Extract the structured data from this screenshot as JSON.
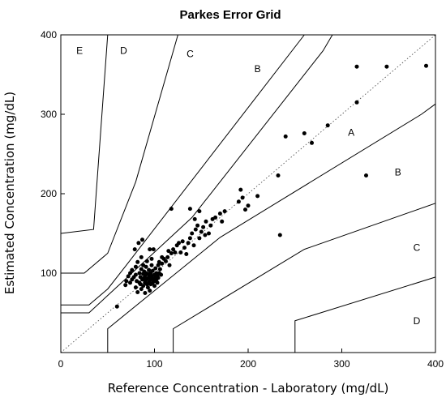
{
  "chart_data": {
    "type": "scatter",
    "title": "Parkes Error Grid",
    "xlabel": "Reference Concentration - Laboratory (mg/dL)",
    "ylabel": "Estimated Concentration (mg/dL)",
    "xlim": [
      0,
      400
    ],
    "ylim": [
      0,
      400
    ],
    "xticks": [
      "0",
      "100",
      "200",
      "300",
      "400"
    ],
    "yticks": [
      "100",
      "200",
      "300",
      "400"
    ],
    "grid": false,
    "identity_line": {
      "from": [
        0,
        0
      ],
      "to": [
        400,
        400
      ],
      "style": "dotted"
    },
    "zone_boundaries": [
      {
        "name": "A/B upper",
        "points": [
          [
            0,
            50
          ],
          [
            30,
            50
          ],
          [
            140,
            170
          ],
          [
            280,
            380
          ],
          [
            290,
            400
          ]
        ]
      },
      {
        "name": "A/B lower",
        "points": [
          [
            50,
            0
          ],
          [
            50,
            30
          ],
          [
            170,
            145
          ],
          [
            385,
            300
          ],
          [
            400,
            313
          ]
        ]
      },
      {
        "name": "B/C upper",
        "points": [
          [
            0,
            60
          ],
          [
            30,
            60
          ],
          [
            50,
            80
          ],
          [
            70,
            110
          ],
          [
            260,
            400
          ]
        ]
      },
      {
        "name": "B/C lower",
        "points": [
          [
            120,
            0
          ],
          [
            120,
            30
          ],
          [
            260,
            130
          ],
          [
            400,
            188
          ]
        ]
      },
      {
        "name": "C/D upper",
        "points": [
          [
            0,
            100
          ],
          [
            25,
            100
          ],
          [
            50,
            125
          ],
          [
            80,
            215
          ],
          [
            125,
            400
          ]
        ]
      },
      {
        "name": "C/D lower",
        "points": [
          [
            250,
            0
          ],
          [
            250,
            40
          ],
          [
            400,
            95
          ]
        ]
      },
      {
        "name": "D/E upper",
        "points": [
          [
            0,
            150
          ],
          [
            35,
            155
          ],
          [
            50,
            400
          ]
        ]
      }
    ],
    "zone_labels": [
      {
        "text": "E",
        "x": 20,
        "y": 380
      },
      {
        "text": "D",
        "x": 67,
        "y": 380
      },
      {
        "text": "C",
        "x": 138,
        "y": 376
      },
      {
        "text": "B",
        "x": 210,
        "y": 357
      },
      {
        "text": "A",
        "x": 310,
        "y": 277
      },
      {
        "text": "B",
        "x": 360,
        "y": 227
      },
      {
        "text": "C",
        "x": 380,
        "y": 132
      },
      {
        "text": "D",
        "x": 380,
        "y": 40
      }
    ],
    "points": [
      [
        60,
        58
      ],
      [
        69,
        85
      ],
      [
        70,
        90
      ],
      [
        72,
        96
      ],
      [
        74,
        100
      ],
      [
        74,
        88
      ],
      [
        76,
        92
      ],
      [
        76,
        104
      ],
      [
        78,
        95
      ],
      [
        79,
        130
      ],
      [
        80,
        108
      ],
      [
        80,
        98
      ],
      [
        80,
        82
      ],
      [
        81,
        90
      ],
      [
        82,
        114
      ],
      [
        82,
        76
      ],
      [
        83,
        138
      ],
      [
        84,
        100
      ],
      [
        84,
        88
      ],
      [
        85,
        95
      ],
      [
        85,
        86
      ],
      [
        86,
        120
      ],
      [
        86,
        105
      ],
      [
        86,
        80
      ],
      [
        87,
        92
      ],
      [
        87,
        142
      ],
      [
        88,
        99
      ],
      [
        88,
        110
      ],
      [
        88,
        84
      ],
      [
        89,
        94
      ],
      [
        89,
        102
      ],
      [
        90,
        90
      ],
      [
        90,
        97
      ],
      [
        90,
        88
      ],
      [
        90,
        75
      ],
      [
        91,
        108
      ],
      [
        91,
        100
      ],
      [
        92,
        93
      ],
      [
        92,
        86
      ],
      [
        92,
        115
      ],
      [
        93,
        99
      ],
      [
        93,
        82
      ],
      [
        94,
        95
      ],
      [
        94,
        104
      ],
      [
        94,
        89
      ],
      [
        95,
        78
      ],
      [
        95,
        130
      ],
      [
        95,
        97
      ],
      [
        96,
        92
      ],
      [
        96,
        100
      ],
      [
        96,
        86
      ],
      [
        97,
        96
      ],
      [
        97,
        110
      ],
      [
        97,
        118
      ],
      [
        98,
        93
      ],
      [
        98,
        88
      ],
      [
        98,
        103
      ],
      [
        99,
        130
      ],
      [
        100,
        98
      ],
      [
        100,
        90
      ],
      [
        100,
        84
      ],
      [
        101,
        95
      ],
      [
        101,
        106
      ],
      [
        102,
        92
      ],
      [
        102,
        100
      ],
      [
        103,
        97
      ],
      [
        103,
        88
      ],
      [
        104,
        110
      ],
      [
        104,
        94
      ],
      [
        105,
        114
      ],
      [
        105,
        100
      ],
      [
        106,
        105
      ],
      [
        107,
        98
      ],
      [
        108,
        112
      ],
      [
        108,
        120
      ],
      [
        110,
        118
      ],
      [
        112,
        115
      ],
      [
        114,
        120
      ],
      [
        115,
        128
      ],
      [
        116,
        110
      ],
      [
        118,
        125
      ],
      [
        118,
        181
      ],
      [
        120,
        130
      ],
      [
        122,
        126
      ],
      [
        124,
        135
      ],
      [
        126,
        138
      ],
      [
        128,
        126
      ],
      [
        130,
        140
      ],
      [
        132,
        132
      ],
      [
        134,
        124
      ],
      [
        136,
        138
      ],
      [
        138,
        144
      ],
      [
        138,
        181
      ],
      [
        140,
        150
      ],
      [
        142,
        135
      ],
      [
        143,
        168
      ],
      [
        144,
        155
      ],
      [
        146,
        160
      ],
      [
        148,
        144
      ],
      [
        148,
        178
      ],
      [
        150,
        152
      ],
      [
        152,
        158
      ],
      [
        154,
        148
      ],
      [
        155,
        165
      ],
      [
        158,
        150
      ],
      [
        160,
        160
      ],
      [
        162,
        168
      ],
      [
        165,
        170
      ],
      [
        170,
        175
      ],
      [
        172,
        165
      ],
      [
        175,
        178
      ],
      [
        190,
        190
      ],
      [
        192,
        205
      ],
      [
        194,
        195
      ],
      [
        197,
        180
      ],
      [
        200,
        185
      ],
      [
        210,
        197
      ],
      [
        232,
        223
      ],
      [
        234,
        148
      ],
      [
        240,
        272
      ],
      [
        260,
        276
      ],
      [
        268,
        264
      ],
      [
        285,
        286
      ],
      [
        316,
        315
      ],
      [
        316,
        360
      ],
      [
        326,
        223
      ],
      [
        348,
        360
      ],
      [
        390,
        361
      ]
    ]
  }
}
